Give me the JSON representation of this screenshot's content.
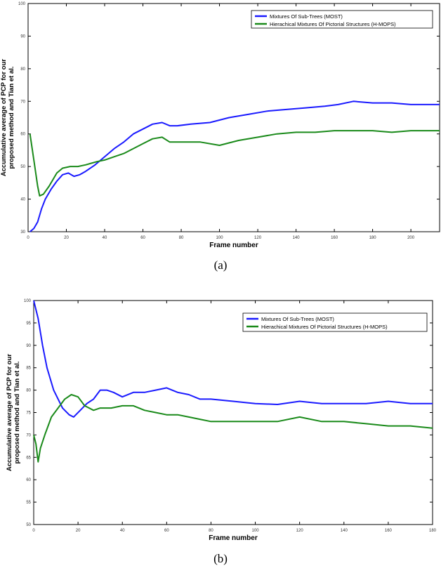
{
  "chart_data": [
    {
      "type": "line",
      "caption": "(a)",
      "xlabel": "Frame number",
      "ylabel": "Accumulative average of PCP for our proposed method and Tian et al.",
      "xlim": [
        0,
        215
      ],
      "ylim": [
        30,
        100
      ],
      "xticks": [
        0,
        20,
        40,
        60,
        80,
        100,
        120,
        140,
        160,
        180,
        200
      ],
      "yticks": [
        30,
        40,
        50,
        60,
        70,
        80,
        90,
        100
      ],
      "legend_position": "top-right",
      "grid": false,
      "series": [
        {
          "name": "Mixtures Of Sub-Trees (MOST)",
          "color": "#1a1aff",
          "points": [
            [
              1,
              30
            ],
            [
              3,
              31
            ],
            [
              5,
              33
            ],
            [
              7,
              37
            ],
            [
              9,
              40
            ],
            [
              12,
              43
            ],
            [
              15,
              45.5
            ],
            [
              18,
              47.5
            ],
            [
              21,
              48
            ],
            [
              24,
              47
            ],
            [
              27,
              47.5
            ],
            [
              30,
              48.5
            ],
            [
              35,
              50.5
            ],
            [
              40,
              53
            ],
            [
              45,
              55.5
            ],
            [
              50,
              57.5
            ],
            [
              55,
              60
            ],
            [
              60,
              61.5
            ],
            [
              65,
              63
            ],
            [
              70,
              63.5
            ],
            [
              74,
              62.5
            ],
            [
              78,
              62.5
            ],
            [
              85,
              63
            ],
            [
              95,
              63.5
            ],
            [
              105,
              65
            ],
            [
              115,
              66
            ],
            [
              125,
              67
            ],
            [
              135,
              67.5
            ],
            [
              145,
              68
            ],
            [
              155,
              68.5
            ],
            [
              162,
              69
            ],
            [
              170,
              70
            ],
            [
              180,
              69.5
            ],
            [
              190,
              69.5
            ],
            [
              200,
              69
            ],
            [
              215,
              69
            ]
          ]
        },
        {
          "name": "Hierachical Mixtures Of Pictorial Structures (H-MOPS)",
          "color": "#1a8a1a",
          "points": [
            [
              1,
              60
            ],
            [
              3,
              52
            ],
            [
              5,
              44
            ],
            [
              6,
              41
            ],
            [
              8,
              41.5
            ],
            [
              11,
              44
            ],
            [
              15,
              48
            ],
            [
              18,
              49.5
            ],
            [
              22,
              50
            ],
            [
              26,
              50
            ],
            [
              30,
              50.5
            ],
            [
              36,
              51.5
            ],
            [
              40,
              52
            ],
            [
              45,
              53
            ],
            [
              50,
              54
            ],
            [
              55,
              55.5
            ],
            [
              60,
              57
            ],
            [
              65,
              58.5
            ],
            [
              70,
              59
            ],
            [
              74,
              57.5
            ],
            [
              80,
              57.5
            ],
            [
              90,
              57.5
            ],
            [
              100,
              56.5
            ],
            [
              110,
              58
            ],
            [
              120,
              59
            ],
            [
              130,
              60
            ],
            [
              140,
              60.5
            ],
            [
              150,
              60.5
            ],
            [
              160,
              61
            ],
            [
              170,
              61
            ],
            [
              180,
              61
            ],
            [
              190,
              60.5
            ],
            [
              200,
              61
            ],
            [
              215,
              61
            ]
          ]
        }
      ]
    },
    {
      "type": "line",
      "caption": "(b)",
      "xlabel": "Frame number",
      "ylabel": "Accumulative average of PCP for our proposed method and Tian et al.",
      "xlim": [
        0,
        180
      ],
      "ylim": [
        50,
        100
      ],
      "xticks": [
        0,
        20,
        40,
        60,
        80,
        100,
        120,
        140,
        160,
        180
      ],
      "yticks": [
        50,
        55,
        60,
        65,
        70,
        75,
        80,
        85,
        90,
        95,
        100
      ],
      "legend_position": "top-right",
      "grid": false,
      "series": [
        {
          "name": "Mixtures Of Sub-Trees (MOST)",
          "color": "#1a1aff",
          "points": [
            [
              0,
              100
            ],
            [
              2,
              96
            ],
            [
              4,
              90
            ],
            [
              6,
              85
            ],
            [
              9,
              80
            ],
            [
              13,
              76
            ],
            [
              16,
              74.5
            ],
            [
              18,
              74
            ],
            [
              21,
              75.5
            ],
            [
              24,
              77
            ],
            [
              27,
              78
            ],
            [
              30,
              80
            ],
            [
              33,
              80
            ],
            [
              36,
              79.5
            ],
            [
              40,
              78.5
            ],
            [
              45,
              79.5
            ],
            [
              50,
              79.5
            ],
            [
              55,
              80
            ],
            [
              60,
              80.5
            ],
            [
              65,
              79.5
            ],
            [
              70,
              79
            ],
            [
              75,
              78
            ],
            [
              80,
              78
            ],
            [
              90,
              77.5
            ],
            [
              100,
              77
            ],
            [
              110,
              76.8
            ],
            [
              120,
              77.5
            ],
            [
              130,
              77
            ],
            [
              140,
              77
            ],
            [
              150,
              77
            ],
            [
              160,
              77.5
            ],
            [
              170,
              77
            ],
            [
              180,
              77
            ]
          ]
        },
        {
          "name": "Hierachical Mixtures Of Pictorial Structures (H-MOPS)",
          "color": "#1a8a1a",
          "points": [
            [
              0,
              70
            ],
            [
              1,
              68
            ],
            [
              2,
              64
            ],
            [
              3,
              67
            ],
            [
              5,
              70
            ],
            [
              8,
              74
            ],
            [
              11,
              76
            ],
            [
              14,
              78
            ],
            [
              17,
              79
            ],
            [
              20,
              78.5
            ],
            [
              23,
              76.5
            ],
            [
              27,
              75.5
            ],
            [
              30,
              76
            ],
            [
              35,
              76
            ],
            [
              40,
              76.5
            ],
            [
              45,
              76.5
            ],
            [
              50,
              75.5
            ],
            [
              55,
              75
            ],
            [
              60,
              74.5
            ],
            [
              65,
              74.5
            ],
            [
              70,
              74
            ],
            [
              75,
              73.5
            ],
            [
              80,
              73
            ],
            [
              90,
              73
            ],
            [
              100,
              73
            ],
            [
              110,
              73
            ],
            [
              120,
              74
            ],
            [
              130,
              73
            ],
            [
              140,
              73
            ],
            [
              150,
              72.5
            ],
            [
              160,
              72
            ],
            [
              170,
              72
            ],
            [
              180,
              71.5
            ]
          ]
        }
      ]
    }
  ]
}
